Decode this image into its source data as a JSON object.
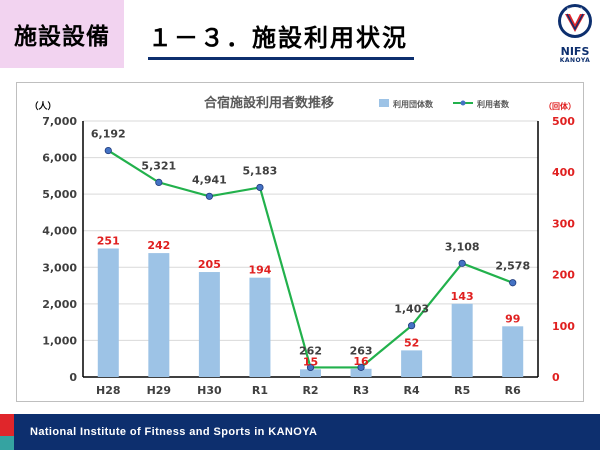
{
  "header": {
    "section_tag": "施設設備",
    "title": "１－３．施設利用状況",
    "logo_text": "NIFS",
    "logo_sub": "KANOYA",
    "logo_emblem_text": "KANOYA"
  },
  "footer": {
    "text": "National Institute of Fitness and Sports in KANOYA"
  },
  "colors": {
    "bar": "#9dc3e6",
    "line": "#22b14c",
    "marker": "#4472c4",
    "right_axis": "#e02020",
    "navy": "#0d2f6e"
  },
  "chart_data": {
    "type": "bar+line",
    "title": "合宿施設利用者数推移",
    "categories": [
      "H28",
      "H29",
      "H30",
      "R1",
      "R2",
      "R3",
      "R4",
      "R5",
      "R6"
    ],
    "series": [
      {
        "name": "利用団体数",
        "type": "bar",
        "axis": "right",
        "values": [
          251,
          242,
          205,
          194,
          15,
          16,
          52,
          143,
          99
        ]
      },
      {
        "name": "利用者数",
        "type": "line",
        "axis": "left",
        "values": [
          6192,
          5321,
          4941,
          5183,
          262,
          263,
          1403,
          3108,
          2578
        ]
      }
    ],
    "left_axis": {
      "label": "（人）",
      "min": 0,
      "max": 7000,
      "ticks": [
        "0",
        "1,000",
        "2,000",
        "3,000",
        "4,000",
        "5,000",
        "6,000",
        "7,000"
      ]
    },
    "right_axis": {
      "label": "（回体）",
      "min": 0,
      "max": 500,
      "ticks": [
        "0",
        "100",
        "200",
        "300",
        "400",
        "500"
      ]
    },
    "line_labels": [
      "6,192",
      "5,321",
      "4,941",
      "5,183",
      "262",
      "263",
      "1,403",
      "3,108",
      "2,578"
    ],
    "bar_labels": [
      "251",
      "242",
      "205",
      "194",
      "15",
      "16",
      "52",
      "143",
      "99"
    ]
  }
}
